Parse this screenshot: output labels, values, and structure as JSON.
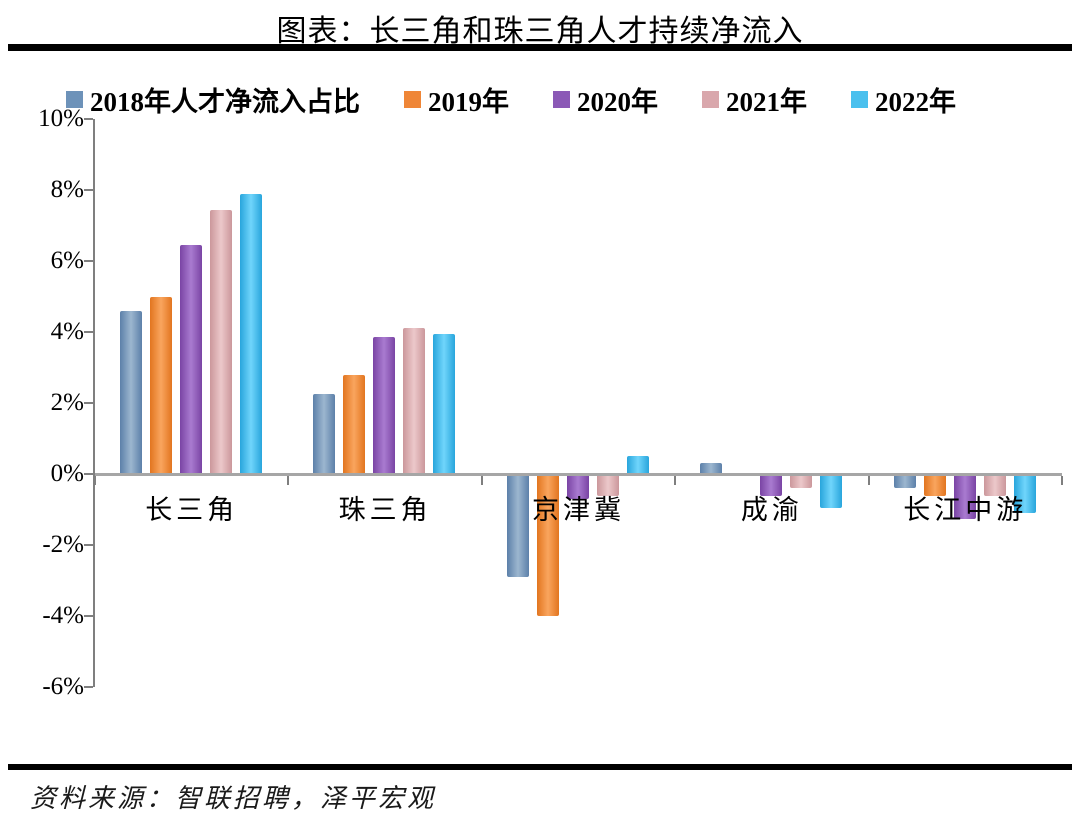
{
  "title": "图表：长三角和珠三角人才持续净流入",
  "source": "资料来源：智联招聘，泽平宏观",
  "chart_data": {
    "type": "bar",
    "title": "图表：长三角和珠三角人才持续净流入",
    "categories": [
      "长三角",
      "珠三角",
      "京津冀",
      "成渝",
      "长江中游"
    ],
    "series": [
      {
        "name": "2018年人才净流入占比",
        "color": "#6d92b9",
        "gradient": [
          "#5c80a9",
          "#9cb6cf"
        ],
        "values": [
          4.6,
          2.25,
          -2.85,
          0.3,
          -0.35
        ]
      },
      {
        "name": "2019年",
        "color": "#ef8637",
        "gradient": [
          "#e2751f",
          "#f9a55e"
        ],
        "values": [
          5.0,
          2.8,
          -3.95,
          0,
          -0.55
        ]
      },
      {
        "name": "2020年",
        "color": "#8b59b6",
        "gradient": [
          "#7a44a4",
          "#a97bd0"
        ],
        "values": [
          6.45,
          3.85,
          -0.65,
          -0.55,
          -1.2
        ]
      },
      {
        "name": "2021年",
        "color": "#d9a7ac",
        "gradient": [
          "#cb979b",
          "#ecc8ca"
        ],
        "values": [
          7.45,
          4.1,
          -0.55,
          -0.35,
          -0.55
        ]
      },
      {
        "name": "2022年",
        "color": "#4ac0ee",
        "gradient": [
          "#28a5dc",
          "#70d5fb"
        ],
        "values": [
          7.9,
          3.95,
          0.5,
          -0.9,
          -1.05
        ]
      }
    ],
    "ylim": [
      -6,
      10
    ],
    "ytick_step": 2,
    "yticks": [
      "10%",
      "8%",
      "6%",
      "4%",
      "2%",
      "0%",
      "-2%",
      "-4%",
      "-6%"
    ],
    "ylabel": "",
    "xlabel": "",
    "legend_position": "top",
    "grid": false
  }
}
